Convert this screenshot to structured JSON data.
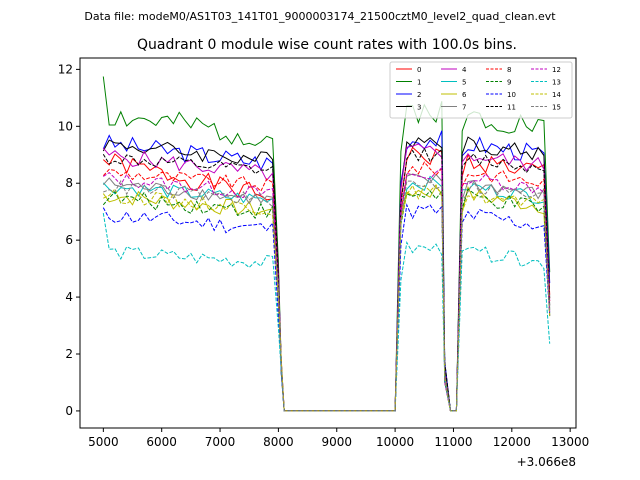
{
  "chart_data": {
    "type": "line",
    "suptitle": "Data file: modeM0/AS1T03_141T01_9000003174_21500cztM0_level2_quad_clean.evt",
    "title": "Quadrant 0 module wise count rates with 100.0s bins.",
    "xlabel": "",
    "ylabel": "",
    "x_offset_label": "+3.066e8",
    "xlim": [
      4600,
      13100
    ],
    "ylim": [
      -0.6,
      12.4
    ],
    "xticks": [
      5000,
      6000,
      7000,
      8000,
      9000,
      10000,
      11000,
      12000,
      13000
    ],
    "yticks": [
      0,
      2,
      4,
      6,
      8,
      10,
      12
    ],
    "segments": [
      {
        "x_start": 5000,
        "x_end": 7900,
        "dx": 100
      },
      {
        "x_start": 8000,
        "x_end": 8100,
        "dx": 100
      },
      {
        "x_start": 10000,
        "x_end": 10800,
        "dx": 100
      },
      {
        "x_start": 10850,
        "x_end": 11050,
        "dx": 100
      },
      {
        "x_start": 11100,
        "x_end": 12650,
        "dx": 100
      }
    ],
    "gaps": [
      {
        "x_start": 8100,
        "x_end": 10000,
        "value": 0
      }
    ],
    "series": [
      {
        "name": "0",
        "color": "#ff0000",
        "dash": "solid",
        "base": 8.8,
        "pre_drop": 7.5,
        "amp": 0.35,
        "seed": 1
      },
      {
        "name": "1",
        "color": "#008000",
        "dash": "solid",
        "base": 10.4,
        "pre_drop": 9.6,
        "amp": 0.45,
        "seed": 2,
        "first": 11.75
      },
      {
        "name": "2",
        "color": "#0000ff",
        "dash": "solid",
        "base": 9.4,
        "pre_drop": 8.7,
        "amp": 0.35,
        "seed": 3
      },
      {
        "name": "3",
        "color": "#000000",
        "dash": "solid",
        "base": 9.4,
        "pre_drop": 8.8,
        "amp": 0.3,
        "seed": 4
      },
      {
        "name": "4",
        "color": "#bf00bf",
        "dash": "solid",
        "base": 9.0,
        "pre_drop": 8.3,
        "amp": 0.3,
        "seed": 5
      },
      {
        "name": "5",
        "color": "#00bfbf",
        "dash": "solid",
        "base": 7.9,
        "pre_drop": 7.4,
        "amp": 0.25,
        "seed": 6
      },
      {
        "name": "6",
        "color": "#bfbf00",
        "dash": "solid",
        "base": 7.6,
        "pre_drop": 7.0,
        "amp": 0.3,
        "seed": 7
      },
      {
        "name": "7",
        "color": "#808080",
        "dash": "solid",
        "base": 8.0,
        "pre_drop": 7.4,
        "amp": 0.25,
        "seed": 8
      },
      {
        "name": "8",
        "color": "#ff0000",
        "dash": "dashed",
        "base": 8.4,
        "pre_drop": 7.9,
        "amp": 0.25,
        "seed": 9
      },
      {
        "name": "9",
        "color": "#008000",
        "dash": "dashed",
        "base": 7.5,
        "pre_drop": 7.0,
        "amp": 0.3,
        "seed": 10
      },
      {
        "name": "10",
        "color": "#0000ff",
        "dash": "dashed",
        "base": 6.9,
        "pre_drop": 6.4,
        "amp": 0.3,
        "seed": 11
      },
      {
        "name": "11",
        "color": "#000000",
        "dash": "dashed",
        "base": 8.9,
        "pre_drop": 8.4,
        "amp": 0.25,
        "seed": 12
      },
      {
        "name": "12",
        "color": "#bf00bf",
        "dash": "dashed",
        "base": 8.2,
        "pre_drop": 7.6,
        "amp": 0.25,
        "seed": 13
      },
      {
        "name": "13",
        "color": "#00bfbf",
        "dash": "dashed",
        "base": 5.6,
        "pre_drop": 5.2,
        "amp": 0.25,
        "seed": 14,
        "first": 6.95
      },
      {
        "name": "14",
        "color": "#bfbf00",
        "dash": "dashed",
        "base": 7.6,
        "pre_drop": 7.1,
        "amp": 0.25,
        "seed": 15
      },
      {
        "name": "15",
        "color": "#808080",
        "dash": "dashed",
        "base": 7.9,
        "pre_drop": 7.4,
        "amp": 0.25,
        "seed": 16
      }
    ],
    "legend": {
      "location": "upper-right",
      "columns": 4
    }
  }
}
